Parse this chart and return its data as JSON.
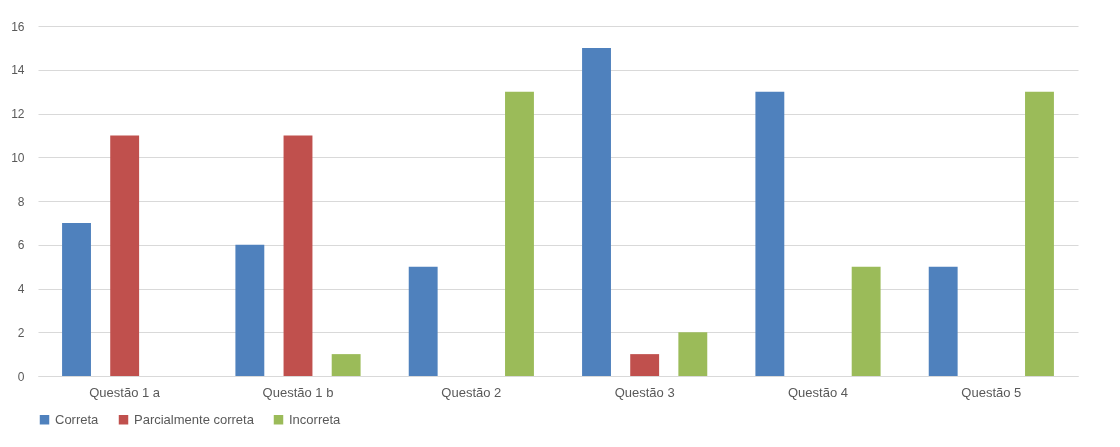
{
  "chart_data": {
    "type": "bar",
    "categories": [
      "Questão 1 a",
      "Questão 1 b",
      "Questão 2",
      "Questão 3",
      "Questão 4",
      "Questão 5"
    ],
    "series": [
      {
        "name": "Correta",
        "color": "#4f81bd",
        "values": [
          7,
          6,
          5,
          15,
          13,
          5
        ]
      },
      {
        "name": "Parcialmente correta",
        "color": "#c0504d",
        "values": [
          11,
          11,
          0,
          1,
          0,
          0
        ]
      },
      {
        "name": "Incorreta",
        "color": "#9bbb59",
        "values": [
          0,
          1,
          13,
          2,
          5,
          13
        ]
      }
    ],
    "ylim": [
      0,
      16
    ],
    "yticks": [
      0,
      2,
      4,
      6,
      8,
      10,
      12,
      14,
      16
    ],
    "grid": "y",
    "legend": "bottom"
  }
}
